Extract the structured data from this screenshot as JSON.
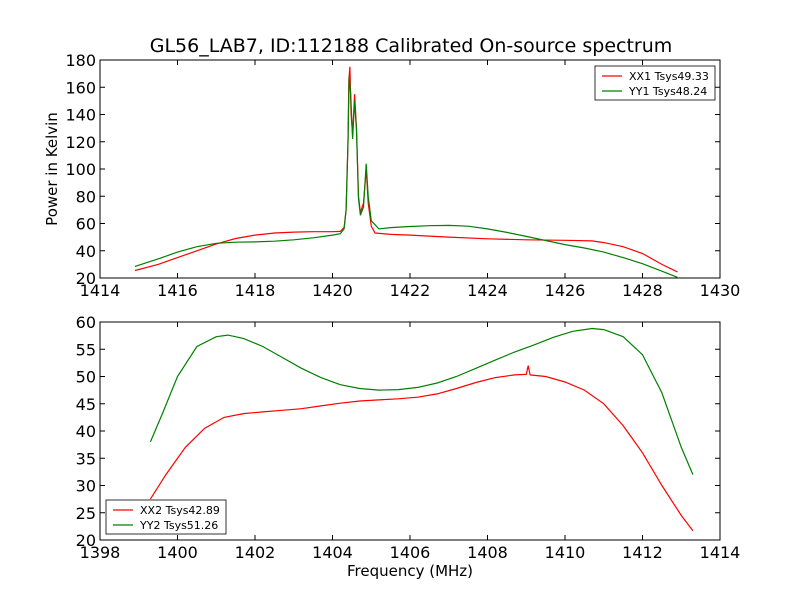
{
  "figure": {
    "title": "GL56_LAB7, ID:112188 Calibrated On-source spectrum"
  },
  "chart_data": [
    {
      "type": "line",
      "title": "GL56_LAB7, ID:112188 Calibrated On-source spectrum",
      "xlabel": "",
      "ylabel": "Power in Kelvin",
      "xlim": [
        1414,
        1430
      ],
      "ylim": [
        20,
        180
      ],
      "xticks": [
        1414,
        1416,
        1418,
        1420,
        1422,
        1424,
        1426,
        1428,
        1430
      ],
      "yticks": [
        20,
        40,
        60,
        80,
        100,
        120,
        140,
        160,
        180
      ],
      "legend_position": "top-right",
      "grid": false,
      "series": [
        {
          "name": "XX1 Tsys49.33",
          "color": "#ff0000",
          "points": [
            [
              1414.9,
              25.5
            ],
            [
              1415.5,
              30
            ],
            [
              1416,
              35
            ],
            [
              1416.5,
              40
            ],
            [
              1417,
              45
            ],
            [
              1417.5,
              49
            ],
            [
              1418,
              51.5
            ],
            [
              1418.5,
              53
            ],
            [
              1419,
              53.7
            ],
            [
              1419.5,
              54
            ],
            [
              1420,
              54
            ],
            [
              1420.2,
              54.2
            ],
            [
              1420.3,
              57
            ],
            [
              1420.35,
              70
            ],
            [
              1420.4,
              120
            ],
            [
              1420.42,
              165
            ],
            [
              1420.45,
              175
            ],
            [
              1420.48,
              140
            ],
            [
              1420.52,
              125
            ],
            [
              1420.57,
              155
            ],
            [
              1420.62,
              130
            ],
            [
              1420.67,
              80
            ],
            [
              1420.72,
              68
            ],
            [
              1420.8,
              75
            ],
            [
              1420.87,
              100
            ],
            [
              1420.92,
              75
            ],
            [
              1421,
              58
            ],
            [
              1421.1,
              53
            ],
            [
              1421.5,
              52
            ],
            [
              1422,
              51.5
            ],
            [
              1423,
              50
            ],
            [
              1424,
              48.8
            ],
            [
              1425,
              48
            ],
            [
              1426,
              47.7
            ],
            [
              1426.7,
              47.2
            ],
            [
              1427,
              46
            ],
            [
              1427.5,
              43
            ],
            [
              1428,
              38
            ],
            [
              1428.5,
              30
            ],
            [
              1428.9,
              24.5
            ]
          ]
        },
        {
          "name": "YY1 Tsys48.24",
          "color": "#008000",
          "points": [
            [
              1414.9,
              28.5
            ],
            [
              1415.5,
              34
            ],
            [
              1416,
              39
            ],
            [
              1416.5,
              43
            ],
            [
              1417,
              45.5
            ],
            [
              1417.5,
              46.3
            ],
            [
              1418,
              46.5
            ],
            [
              1418.5,
              47
            ],
            [
              1419,
              48
            ],
            [
              1419.5,
              49.5
            ],
            [
              1420,
              51.5
            ],
            [
              1420.2,
              52.5
            ],
            [
              1420.3,
              56
            ],
            [
              1420.35,
              70
            ],
            [
              1420.4,
              120
            ],
            [
              1420.43,
              168
            ],
            [
              1420.47,
              155
            ],
            [
              1420.52,
              122
            ],
            [
              1420.57,
              150
            ],
            [
              1420.62,
              128
            ],
            [
              1420.67,
              78
            ],
            [
              1420.72,
              66
            ],
            [
              1420.8,
              72
            ],
            [
              1420.87,
              104
            ],
            [
              1420.92,
              80
            ],
            [
              1421,
              62
            ],
            [
              1421.2,
              56
            ],
            [
              1421.5,
              57
            ],
            [
              1422,
              57.8
            ],
            [
              1422.5,
              58.4
            ],
            [
              1423,
              58.6
            ],
            [
              1423.5,
              58
            ],
            [
              1424,
              56
            ],
            [
              1424.5,
              53.5
            ],
            [
              1425,
              50.5
            ],
            [
              1425.5,
              47.5
            ],
            [
              1426,
              44.5
            ],
            [
              1426.5,
              42
            ],
            [
              1427,
              39
            ],
            [
              1427.5,
              35
            ],
            [
              1428,
              30.5
            ],
            [
              1428.5,
              25
            ],
            [
              1428.9,
              20.5
            ]
          ]
        }
      ]
    },
    {
      "type": "line",
      "title": "",
      "xlabel": "Frequency (MHz)",
      "ylabel": "",
      "xlim": [
        1398,
        1414
      ],
      "ylim": [
        20,
        60
      ],
      "xticks": [
        1398,
        1400,
        1402,
        1404,
        1406,
        1408,
        1410,
        1412,
        1414
      ],
      "yticks": [
        20,
        25,
        30,
        35,
        40,
        45,
        50,
        55,
        60
      ],
      "legend_position": "bottom-left",
      "grid": false,
      "series": [
        {
          "name": "XX2 Tsys42.89",
          "color": "#ff0000",
          "points": [
            [
              1399.3,
              27.5
            ],
            [
              1399.7,
              32
            ],
            [
              1400.2,
              37
            ],
            [
              1400.7,
              40.5
            ],
            [
              1401.2,
              42.5
            ],
            [
              1401.7,
              43.2
            ],
            [
              1402.2,
              43.5
            ],
            [
              1402.7,
              43.8
            ],
            [
              1403.2,
              44.1
            ],
            [
              1403.7,
              44.6
            ],
            [
              1404.2,
              45.1
            ],
            [
              1404.7,
              45.5
            ],
            [
              1405.2,
              45.7
            ],
            [
              1405.7,
              45.9
            ],
            [
              1406.2,
              46.2
            ],
            [
              1406.7,
              46.8
            ],
            [
              1407.2,
              47.8
            ],
            [
              1407.7,
              48.9
            ],
            [
              1408.2,
              49.8
            ],
            [
              1408.7,
              50.3
            ],
            [
              1409.0,
              50.4
            ],
            [
              1409.05,
              52
            ],
            [
              1409.1,
              50.3
            ],
            [
              1409.5,
              50
            ],
            [
              1410,
              49
            ],
            [
              1410.5,
              47.5
            ],
            [
              1411,
              45
            ],
            [
              1411.5,
              41
            ],
            [
              1412,
              36
            ],
            [
              1412.5,
              30
            ],
            [
              1413,
              24.5
            ],
            [
              1413.3,
              21.7
            ]
          ]
        },
        {
          "name": "YY2 Tsys51.26",
          "color": "#008000",
          "points": [
            [
              1399.3,
              38
            ],
            [
              1399.6,
              43
            ],
            [
              1400,
              50
            ],
            [
              1400.5,
              55.5
            ],
            [
              1401,
              57.3
            ],
            [
              1401.3,
              57.6
            ],
            [
              1401.7,
              57
            ],
            [
              1402.2,
              55.5
            ],
            [
              1402.7,
              53.5
            ],
            [
              1403.2,
              51.5
            ],
            [
              1403.7,
              49.8
            ],
            [
              1404.2,
              48.5
            ],
            [
              1404.7,
              47.8
            ],
            [
              1405.2,
              47.5
            ],
            [
              1405.7,
              47.6
            ],
            [
              1406.2,
              48
            ],
            [
              1406.7,
              48.8
            ],
            [
              1407.2,
              50
            ],
            [
              1407.7,
              51.5
            ],
            [
              1408.2,
              53
            ],
            [
              1408.7,
              54.5
            ],
            [
              1409.2,
              55.8
            ],
            [
              1409.7,
              57.2
            ],
            [
              1410.2,
              58.3
            ],
            [
              1410.7,
              58.8
            ],
            [
              1411,
              58.6
            ],
            [
              1411.5,
              57.3
            ],
            [
              1412,
              54
            ],
            [
              1412.5,
              47
            ],
            [
              1413,
              37
            ],
            [
              1413.3,
              32
            ]
          ]
        }
      ]
    }
  ]
}
